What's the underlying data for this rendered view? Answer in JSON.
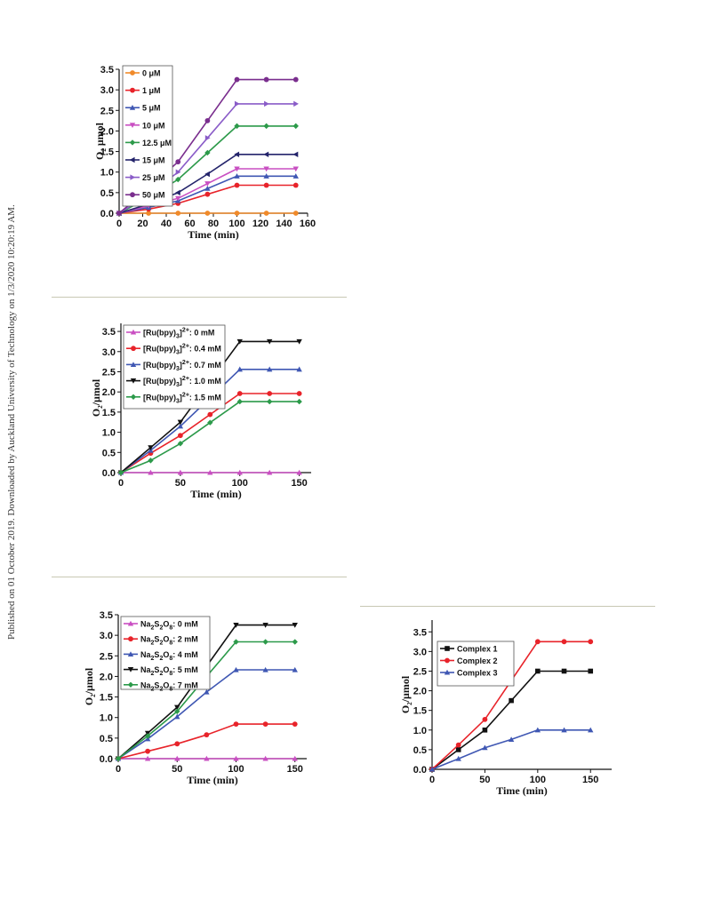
{
  "side_note": "Published on 01 October 2019. Downloaded by Auckland University of Technology on 1/3/2020 10:20:19 AM.",
  "chart_data": [
    {
      "type": "line",
      "xlabel": "Time (min)",
      "ylabel": "O₂ μmol",
      "xlim": [
        0,
        160
      ],
      "ylim": [
        0,
        3.5
      ],
      "xticks": [
        "0",
        "20",
        "40",
        "60",
        "80",
        "100",
        "120",
        "140",
        "160"
      ],
      "yticks": [
        "0.0",
        "0.5",
        "1.0",
        "1.5",
        "2.0",
        "2.5",
        "3.0",
        "3.5"
      ],
      "legend_position": "top-left",
      "x": [
        0,
        25,
        50,
        75,
        100,
        125,
        150
      ],
      "series": [
        {
          "name": "0 μM",
          "color": "#f08a2a",
          "marker": "circle",
          "values": [
            0,
            0,
            0,
            0,
            0,
            0,
            0
          ]
        },
        {
          "name": "1 μM",
          "color": "#e8232a",
          "marker": "circle",
          "values": [
            0,
            0.1,
            0.24,
            0.46,
            0.68,
            0.68,
            0.68
          ]
        },
        {
          "name": "5 μM",
          "color": "#3f57b3",
          "marker": "triangle",
          "values": [
            0,
            0.14,
            0.3,
            0.6,
            0.9,
            0.9,
            0.9
          ]
        },
        {
          "name": "10 μM",
          "color": "#c94fc2",
          "marker": "triangle-down",
          "values": [
            0,
            0.18,
            0.36,
            0.72,
            1.08,
            1.08,
            1.08
          ]
        },
        {
          "name": "12.5 μM",
          "color": "#2c9a4a",
          "marker": "diamond",
          "values": [
            0,
            0.38,
            0.82,
            1.47,
            2.12,
            2.12,
            2.12
          ]
        },
        {
          "name": "15 μM",
          "color": "#24246b",
          "marker": "triangle-left",
          "values": [
            0,
            0.22,
            0.5,
            0.95,
            1.43,
            1.43,
            1.43
          ]
        },
        {
          "name": "25 μM",
          "color": "#8a5cc8",
          "marker": "triangle-right",
          "values": [
            0,
            0.45,
            1.0,
            1.83,
            2.66,
            2.66,
            2.66
          ]
        },
        {
          "name": "50 μM",
          "color": "#7a2e8e",
          "marker": "circle",
          "values": [
            0,
            0.6,
            1.25,
            2.25,
            3.25,
            3.25,
            3.25
          ]
        }
      ]
    },
    {
      "type": "line",
      "xlabel": "Time (min)",
      "ylabel": "O₂/μmol",
      "xlim": [
        0,
        160
      ],
      "ylim": [
        0,
        3.7
      ],
      "xticks": [
        "0",
        "50",
        "100",
        "150"
      ],
      "xtick_values": [
        0,
        50,
        100,
        150
      ],
      "yticks": [
        "0.0",
        "0.5",
        "1.0",
        "1.5",
        "2.0",
        "2.5",
        "3.0",
        "3.5"
      ],
      "legend_position": "top-left",
      "x": [
        0,
        25,
        50,
        75,
        100,
        125,
        150
      ],
      "series": [
        {
          "name": "[Ru(bpy)₃]²⁺: 0 mM",
          "color": "#c94fc2",
          "marker": "triangle",
          "values": [
            0,
            0,
            0,
            0,
            0,
            0,
            0
          ]
        },
        {
          "name": "[Ru(bpy)₃]²⁺: 0.4 mM",
          "color": "#e8232a",
          "marker": "circle",
          "values": [
            0,
            0.48,
            0.92,
            1.44,
            1.96,
            1.96,
            1.96
          ]
        },
        {
          "name": "[Ru(bpy)₃]²⁺: 0.7 mM",
          "color": "#3f57b3",
          "marker": "triangle",
          "values": [
            0,
            0.55,
            1.15,
            1.85,
            2.56,
            2.56,
            2.56
          ]
        },
        {
          "name": "[Ru(bpy)₃]²⁺: 1.0 mM",
          "color": "#111111",
          "marker": "triangle-down",
          "values": [
            0,
            0.62,
            1.25,
            2.25,
            3.25,
            3.25,
            3.25
          ]
        },
        {
          "name": "[Ru(bpy)₃]²⁺: 1.5 mM",
          "color": "#2c9a4a",
          "marker": "diamond",
          "values": [
            0,
            0.3,
            0.72,
            1.24,
            1.76,
            1.76,
            1.76
          ]
        }
      ]
    },
    {
      "type": "line",
      "xlabel": "Time (min)",
      "ylabel": "O₂/μmol",
      "xlim": [
        0,
        160
      ],
      "ylim": [
        0,
        3.5
      ],
      "xticks": [
        "0",
        "50",
        "100",
        "150"
      ],
      "xtick_values": [
        0,
        50,
        100,
        150
      ],
      "yticks": [
        "0.0",
        "0.5",
        "1.0",
        "1.5",
        "2.0",
        "2.5",
        "3.0",
        "3.5"
      ],
      "legend_position": "top-left",
      "x": [
        0,
        25,
        50,
        75,
        100,
        125,
        150
      ],
      "series": [
        {
          "name": "Na₂S₂O₈: 0 mM",
          "color": "#c94fc2",
          "marker": "triangle",
          "values": [
            0,
            0,
            0,
            0,
            0,
            0,
            0
          ]
        },
        {
          "name": "Na₂S₂O₈: 2 mM",
          "color": "#e8232a",
          "marker": "circle",
          "values": [
            0,
            0.18,
            0.36,
            0.58,
            0.84,
            0.84,
            0.84
          ]
        },
        {
          "name": "Na₂S₂O₈: 4 mM",
          "color": "#3f57b3",
          "marker": "triangle",
          "values": [
            0,
            0.48,
            1.02,
            1.62,
            2.16,
            2.16,
            2.16
          ]
        },
        {
          "name": "Na₂S₂O₈: 5 mM",
          "color": "#111111",
          "marker": "triangle-down",
          "values": [
            0,
            0.62,
            1.25,
            2.25,
            3.25,
            3.25,
            3.25
          ]
        },
        {
          "name": "Na₂S₂O₈: 7 mM",
          "color": "#2c9a4a",
          "marker": "diamond",
          "values": [
            0,
            0.55,
            1.15,
            2.0,
            2.84,
            2.84,
            2.84
          ]
        }
      ]
    },
    {
      "type": "line",
      "xlabel": "Time (min)",
      "ylabel": "O₂/μmol",
      "xlim": [
        0,
        170
      ],
      "ylim": [
        0,
        3.8
      ],
      "xticks": [
        "0",
        "50",
        "100",
        "150"
      ],
      "xtick_values": [
        0,
        50,
        100,
        150
      ],
      "yticks": [
        "0.0",
        "0.5",
        "1.0",
        "1.5",
        "2.0",
        "2.5",
        "3.0",
        "3.5"
      ],
      "legend_position": "top-left",
      "x": [
        0,
        25,
        50,
        75,
        100,
        125,
        150
      ],
      "series": [
        {
          "name": "Complex 1",
          "color": "#111111",
          "marker": "square",
          "values": [
            0,
            0.5,
            1.0,
            1.75,
            2.5,
            2.5,
            2.5
          ]
        },
        {
          "name": "Complex 2",
          "color": "#e8232a",
          "marker": "circle",
          "values": [
            0,
            0.62,
            1.27,
            2.26,
            3.25,
            3.25,
            3.25
          ]
        },
        {
          "name": "Complex 3",
          "color": "#3f57b3",
          "marker": "triangle",
          "values": [
            0,
            0.27,
            0.55,
            0.76,
            1.0,
            1.0,
            1.0
          ]
        }
      ]
    }
  ]
}
